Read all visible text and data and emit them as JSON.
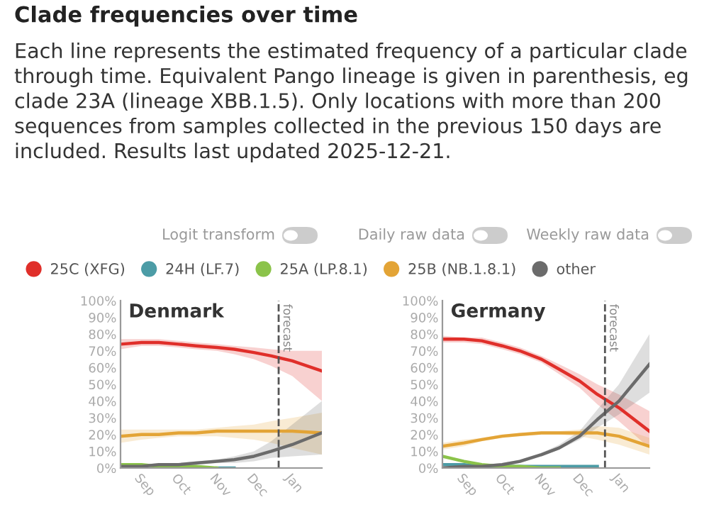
{
  "chart_data": [
    {
      "type": "other",
      "title": "Clade frequencies over time",
      "subtitle": "Each line represents the estimated frequency of a particular clade through time. Equivalent Pango lineage is given in parenthesis, eg clade 23A (lineage XBB.1.5). Only locations with more than 200 sequences from samples collected in the previous 150 days are included. Results last updated 2025-12-21.",
      "annotations": [
        "Logit transform",
        "Daily raw data",
        "Weekly raw data"
      ]
    },
    {
      "type": "line",
      "title": "Denmark",
      "legend": "top",
      "x": [
        "2025-08-15",
        "2025-09-01",
        "2025-09-15",
        "2025-10-01",
        "2025-10-15",
        "2025-11-01",
        "2025-11-15",
        "2025-12-01",
        "2025-12-15",
        "2026-01-01",
        "2026-01-25"
      ],
      "xlim": [
        "2025-08-15",
        "2026-01-25"
      ],
      "xticks": [
        {
          "value": "2025-09-01",
          "label": "Sep"
        },
        {
          "value": "2025-10-01",
          "label": "Oct"
        },
        {
          "value": "2025-11-01",
          "label": "Nov"
        },
        {
          "value": "2025-12-01",
          "label": "Dec"
        },
        {
          "value": "2026-01-01",
          "label": "Jan"
        }
      ],
      "ylim": [
        0,
        100
      ],
      "yticks": [
        {
          "value": 0,
          "label": "0%"
        },
        {
          "value": 10,
          "label": "10%"
        },
        {
          "value": 20,
          "label": "20%"
        },
        {
          "value": 30,
          "label": "30%"
        },
        {
          "value": 40,
          "label": "40%"
        },
        {
          "value": 50,
          "label": "50%"
        },
        {
          "value": 60,
          "label": "60%"
        },
        {
          "value": 70,
          "label": "70%"
        },
        {
          "value": 80,
          "label": "80%"
        },
        {
          "value": 90,
          "label": "90%"
        },
        {
          "value": 100,
          "label": "100%"
        }
      ],
      "ref_lines": [
        {
          "axis": "x",
          "value": "2025-12-21",
          "label": "forecast",
          "color": "#555555",
          "line_style": "dashed"
        }
      ],
      "series": [
        {
          "name": "25C (XFG)",
          "color": "#e02f2a",
          "values": [
            74,
            75,
            75,
            74,
            73,
            72,
            71,
            69,
            67,
            64,
            58
          ],
          "lower": [
            71,
            73,
            73,
            72,
            71,
            70,
            68,
            65,
            61,
            55,
            40
          ],
          "upper": [
            77,
            77,
            77,
            76,
            75,
            74,
            73,
            72,
            71,
            70,
            70
          ]
        },
        {
          "name": "24H (LF.7)",
          "color": "#4c9ca6",
          "values": [
            null,
            null,
            null,
            null,
            null,
            0,
            0,
            null,
            null,
            null,
            null
          ]
        },
        {
          "name": "25A (LP.8.1)",
          "color": "#8bc34a",
          "values": [
            2,
            2,
            1,
            1,
            1,
            0,
            null,
            null,
            null,
            null,
            null
          ]
        },
        {
          "name": "25B (NB.1.8.1)",
          "color": "#e3a436",
          "values": [
            19,
            20,
            20,
            21,
            21,
            22,
            22,
            22,
            22,
            22,
            21
          ],
          "lower": [
            15,
            17,
            18,
            19,
            19,
            19,
            18,
            17,
            15,
            12,
            8
          ],
          "upper": [
            23,
            23,
            23,
            23,
            23,
            24,
            25,
            26,
            28,
            30,
            33
          ]
        },
        {
          "name": "other",
          "color": "#6b6b6b",
          "values": [
            1,
            1,
            2,
            2,
            3,
            4,
            5,
            7,
            10,
            14,
            21
          ],
          "lower": [
            0,
            1,
            1,
            1,
            2,
            3,
            3,
            4,
            6,
            7,
            8
          ],
          "upper": [
            2,
            2,
            3,
            3,
            4,
            5,
            7,
            10,
            16,
            26,
            40
          ]
        }
      ]
    },
    {
      "type": "line",
      "title": "Germany",
      "x": [
        "2025-08-15",
        "2025-09-01",
        "2025-09-15",
        "2025-10-01",
        "2025-10-15",
        "2025-11-01",
        "2025-11-15",
        "2025-12-01",
        "2025-12-15",
        "2026-01-01",
        "2026-01-25"
      ],
      "xlim": [
        "2025-08-15",
        "2026-01-25"
      ],
      "xticks": [
        {
          "value": "2025-09-01",
          "label": "Sep"
        },
        {
          "value": "2025-10-01",
          "label": "Oct"
        },
        {
          "value": "2025-11-01",
          "label": "Nov"
        },
        {
          "value": "2025-12-01",
          "label": "Dec"
        },
        {
          "value": "2026-01-01",
          "label": "Jan"
        }
      ],
      "ylim": [
        0,
        100
      ],
      "yticks": [
        {
          "value": 0,
          "label": "0%"
        },
        {
          "value": 10,
          "label": "10%"
        },
        {
          "value": 20,
          "label": "20%"
        },
        {
          "value": 30,
          "label": "30%"
        },
        {
          "value": 40,
          "label": "40%"
        },
        {
          "value": 50,
          "label": "50%"
        },
        {
          "value": 60,
          "label": "60%"
        },
        {
          "value": 70,
          "label": "70%"
        },
        {
          "value": 80,
          "label": "80%"
        },
        {
          "value": 90,
          "label": "90%"
        },
        {
          "value": 100,
          "label": "100%"
        }
      ],
      "ref_lines": [
        {
          "axis": "x",
          "value": "2025-12-21",
          "label": "forecast",
          "color": "#555555",
          "line_style": "dashed"
        }
      ],
      "series": [
        {
          "color": "#e02f2a",
          "values": [
            77,
            77,
            76,
            73,
            70,
            65,
            59,
            52,
            44,
            36,
            22
          ],
          "lower": [
            75,
            75,
            74,
            71,
            68,
            63,
            56,
            48,
            38,
            28,
            12
          ],
          "upper": [
            79,
            78,
            78,
            75,
            72,
            67,
            62,
            56,
            50,
            44,
            34
          ]
        },
        {
          "color": "#4c9ca6",
          "values": [
            2,
            2,
            1,
            1,
            1,
            1,
            1,
            1,
            1,
            null,
            null
          ]
        },
        {
          "color": "#8bc34a",
          "values": [
            7,
            4,
            2,
            1,
            1,
            0,
            0,
            null,
            null,
            null,
            null
          ]
        },
        {
          "color": "#e3a436",
          "values": [
            13,
            15,
            17,
            19,
            20,
            21,
            21,
            21,
            21,
            19,
            13
          ],
          "lower": [
            11,
            13,
            16,
            18,
            19,
            20,
            20,
            19,
            17,
            14,
            8
          ],
          "upper": [
            15,
            17,
            18,
            20,
            21,
            22,
            22,
            23,
            25,
            24,
            18
          ]
        },
        {
          "color": "#6b6b6b",
          "values": [
            0,
            1,
            1,
            2,
            4,
            8,
            12,
            19,
            29,
            40,
            62
          ],
          "lower": [
            0,
            0,
            1,
            1,
            3,
            7,
            11,
            17,
            24,
            32,
            45
          ],
          "upper": [
            1,
            1,
            2,
            3,
            5,
            9,
            14,
            22,
            35,
            50,
            80
          ]
        }
      ]
    }
  ]
}
